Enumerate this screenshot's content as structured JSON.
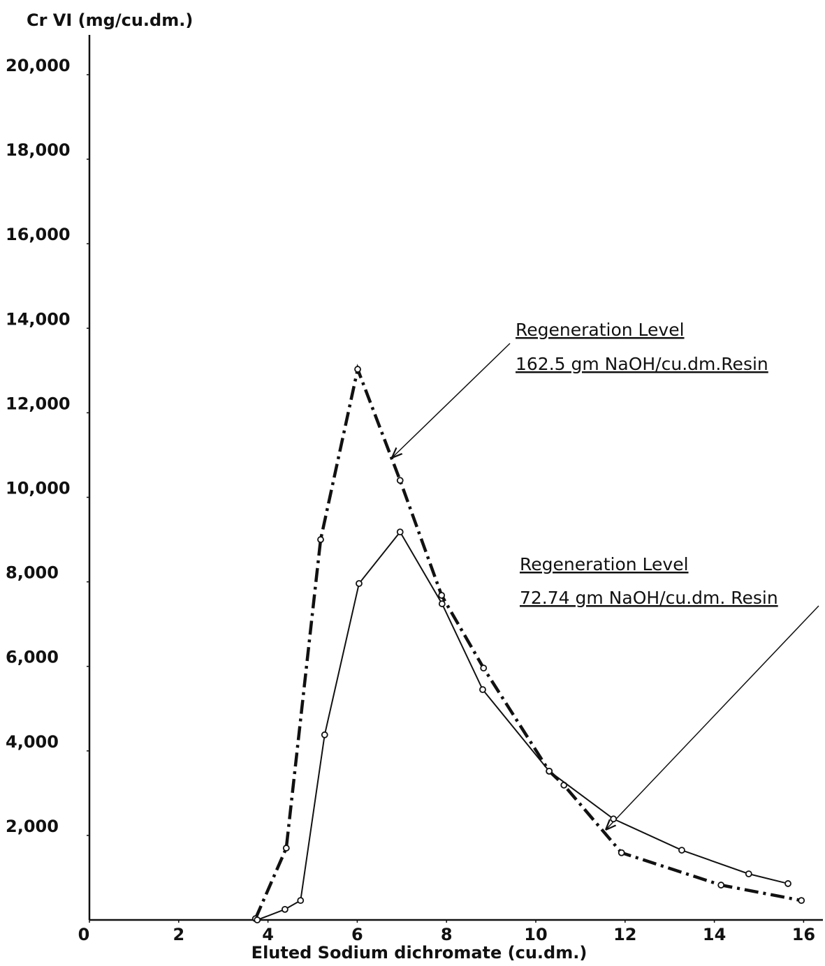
{
  "chart_data": {
    "type": "line",
    "y_label": "Cr VI (mg/cu.dm.)",
    "x_label": "Eluted  Sodium  dichromate (cu.dm.)",
    "annotations": [
      "Regeneration  Level",
      "Regeneration  Level"
    ],
    "xlim": [
      0,
      16.4
    ],
    "ylim": [
      0,
      20900
    ],
    "xticks": [
      0,
      2,
      4,
      6,
      8,
      10,
      12,
      14,
      16
    ],
    "yticks": [
      {
        "value": 2000,
        "label": "2,000"
      },
      {
        "value": 4000,
        "label": "4,000"
      },
      {
        "value": 6000,
        "label": "6,000"
      },
      {
        "value": 8000,
        "label": "8,000"
      },
      {
        "value": 10000,
        "label": "10,000"
      },
      {
        "value": 12000,
        "label": "12,000"
      },
      {
        "value": 14000,
        "label": "14,000"
      },
      {
        "value": 16000,
        "label": "16,000"
      },
      {
        "value": 18000,
        "label": "18,000"
      },
      {
        "value": 20000,
        "label": "20,000"
      }
    ],
    "grid": false,
    "series": [
      {
        "name": "162.5  gm NaOH/cu.dm.Resin",
        "color": "#111111",
        "style": "dashdot",
        "x": [
          3.72,
          4.41,
          5.18,
          6.01,
          6.96,
          7.89,
          8.83,
          10.3,
          10.63,
          11.92,
          14.15,
          15.95
        ],
        "values": [
          30,
          1700,
          9000,
          13030,
          10400,
          7680,
          5960,
          3520,
          3190,
          1590,
          825,
          460
        ]
      },
      {
        "name": "72.74  gm NaOH/cu.dm. Resin",
        "color": "#111111",
        "style": "solid",
        "x": [
          3.76,
          4.38,
          4.73,
          5.27,
          6.04,
          6.96,
          7.9,
          8.81,
          10.3,
          11.74,
          13.27,
          14.77,
          15.65
        ],
        "values": [
          0,
          250,
          460,
          4380,
          7960,
          9180,
          7480,
          5450,
          3520,
          2390,
          1650,
          1090,
          860
        ]
      }
    ]
  }
}
